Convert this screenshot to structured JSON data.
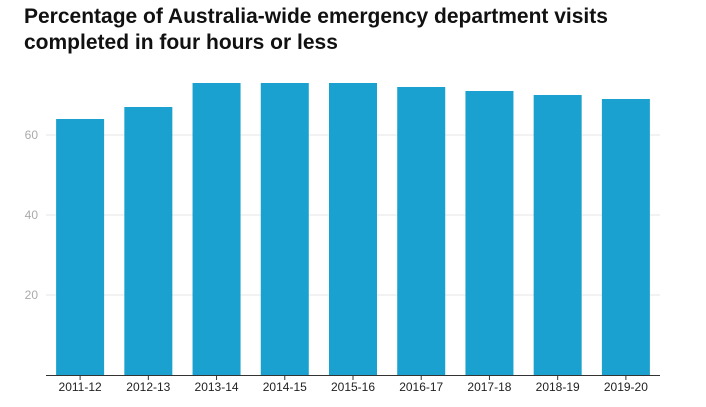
{
  "title_lines": [
    "Percentage of Australia-wide emergency department visits",
    "completed in four hours or less"
  ],
  "colors": {
    "bar": "#1aa1cf",
    "grid": "#e6e6e6",
    "axis": "#333333"
  },
  "chart_data": {
    "type": "bar",
    "title": "Percentage of Australia-wide emergency department visits completed in four hours or less",
    "xlabel": "",
    "ylabel": "",
    "categories": [
      "2011-12",
      "2012-13",
      "2013-14",
      "2014-15",
      "2015-16",
      "2016-17",
      "2017-18",
      "2018-19",
      "2019-20"
    ],
    "values": [
      64,
      67,
      73,
      73,
      73,
      72,
      71,
      70,
      69
    ],
    "ylim": [
      0,
      75
    ],
    "yticks": [
      20,
      40,
      60
    ],
    "grid": true,
    "legend": "none"
  }
}
